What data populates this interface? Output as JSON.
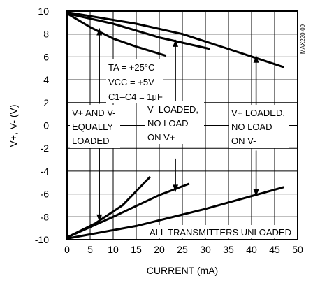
{
  "chart_data": {
    "type": "line",
    "xlabel": "CURRENT (mA)",
    "ylabel": "V+, V- (V)",
    "xlim": [
      0,
      50
    ],
    "ylim": [
      -10,
      10
    ],
    "x_ticks": [
      "0",
      "5",
      "10",
      "15",
      "20",
      "25",
      "30",
      "35",
      "40",
      "45",
      "50"
    ],
    "y_ticks": [
      "10",
      "8",
      "6",
      "4",
      "2",
      "0",
      "-2",
      "-4",
      "-6",
      "-8",
      "-10"
    ],
    "grid": true,
    "figure_id": "MAX220-09",
    "series": [
      {
        "name": "V+ AND V- EQUALLY LOADED (V+)",
        "points": [
          [
            0,
            9.8
          ],
          [
            5,
            8.6
          ],
          [
            10,
            7.6
          ],
          [
            15,
            6.9
          ],
          [
            21.5,
            6.1
          ]
        ]
      },
      {
        "name": "V- LOADED, NO LOAD ON V+ (V+)",
        "points": [
          [
            0,
            9.8
          ],
          [
            10,
            8.9
          ],
          [
            20,
            7.7
          ],
          [
            31,
            6.7
          ]
        ]
      },
      {
        "name": "V+ LOADED, NO LOAD ON V- (V+)",
        "points": [
          [
            0,
            9.9
          ],
          [
            15,
            8.9
          ],
          [
            25,
            8.0
          ],
          [
            35,
            6.7
          ],
          [
            47,
            5.1
          ]
        ]
      },
      {
        "name": "V+ AND V- EQUALLY LOADED (V-)",
        "points": [
          [
            0,
            -9.8
          ],
          [
            6,
            -8.6
          ],
          [
            12,
            -7.0
          ],
          [
            18,
            -4.5
          ]
        ]
      },
      {
        "name": "V- LOADED, NO LOAD ON V+ (V-)",
        "points": [
          [
            0,
            -9.8
          ],
          [
            10,
            -8.0
          ],
          [
            20,
            -6.1
          ],
          [
            26.5,
            -5.1
          ]
        ]
      },
      {
        "name": "V+ LOADED, NO LOAD ON V- (V-)",
        "points": [
          [
            0,
            -9.9
          ],
          [
            15,
            -8.8
          ],
          [
            30,
            -7.3
          ],
          [
            47,
            -5.4
          ]
        ]
      }
    ],
    "annotations": {
      "conditions": {
        "ta": "TA = +25°C",
        "vcc": "VCC = +5V",
        "cap": "C1–C4 = 1μF"
      },
      "equal": [
        "V+ AND V-",
        "EQUALLY",
        "LOADED"
      ],
      "vminus": [
        "V- LOADED,",
        "NO LOAD",
        "ON V+"
      ],
      "vplus": [
        "V+ LOADED,",
        "NO LOAD",
        "ON V-"
      ],
      "unloaded": "ALL TRANSMITTERS UNLOADED"
    }
  }
}
